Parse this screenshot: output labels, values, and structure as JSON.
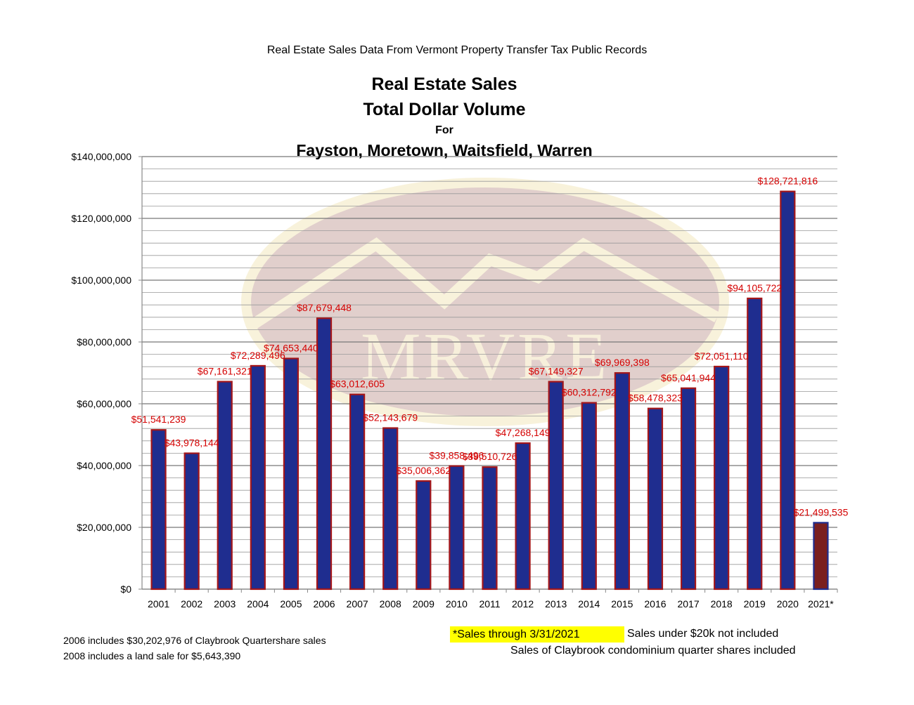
{
  "header": {
    "source": "Real Estate Sales Data From Vermont Property Transfer Tax Public Records"
  },
  "chart_data": {
    "type": "bar",
    "title_lines": [
      "Real Estate Sales",
      "Total Dollar Volume",
      "For",
      "Fayston, Moretown, Waitsfield, Warren"
    ],
    "categories": [
      "2001",
      "2002",
      "2003",
      "2004",
      "2005",
      "2006",
      "2007",
      "2008",
      "2009",
      "2010",
      "2011",
      "2012",
      "2013",
      "2014",
      "2015",
      "2016",
      "2017",
      "2018",
      "2019",
      "2020",
      "2021*"
    ],
    "values": [
      51541239,
      43978144,
      67161321,
      72289496,
      74653440,
      87679448,
      63012605,
      52143679,
      35006362,
      39858496,
      39510726,
      47268149,
      67149327,
      60312792,
      69969398,
      58478323,
      65041944,
      72051110,
      94105722,
      128721816,
      21499535
    ],
    "data_labels": [
      "$51,541,239",
      "$43,978,144",
      "$67,161,321",
      "$72,289,496",
      "$74,653,440",
      "$87,679,448",
      "$63,012,605",
      "$52,143,679",
      "$35,006,362",
      "$39,858,496",
      "$39,510,726",
      "$47,268,149",
      "$67,149,327",
      "$60,312,792",
      "$69,969,398",
      "$58,478,323",
      "$65,041,944",
      "$72,051,110",
      "$94,105,722",
      "$128,721,816",
      "$21,499,535"
    ],
    "ylim": [
      0,
      140000000
    ],
    "y_ticks": [
      0,
      20000000,
      40000000,
      60000000,
      80000000,
      100000000,
      120000000,
      140000000
    ],
    "y_tick_labels": [
      "$0",
      "$20,000,000",
      "$40,000,000",
      "$60,000,000",
      "$80,000,000",
      "$100,000,000",
      "$120,000,000",
      "$140,000,000"
    ],
    "minor_grid_step": 4000000,
    "grid": true,
    "colors": {
      "bar_fill": "#1f2d8f",
      "bar_border": "#a3161a",
      "highlight_bar_fill": "#7a1f1f",
      "highlight_bar_border": "#1f2d8f",
      "data_label": "#d40000",
      "grid": "#999999"
    },
    "highlight_category": "2021*"
  },
  "watermark": {
    "text": "MRVRE"
  },
  "notes": {
    "claybrook_2006": "2006 includes $30,202,976 of Claybrook Quartershare sales",
    "land_sale_2008": "2008 includes a land sale for $5,643,390",
    "through_date": "*Sales through 3/31/2021",
    "under_20k": "Sales under $20k not included",
    "quarter_shares": "Sales of Claybrook condominium quarter shares included"
  }
}
